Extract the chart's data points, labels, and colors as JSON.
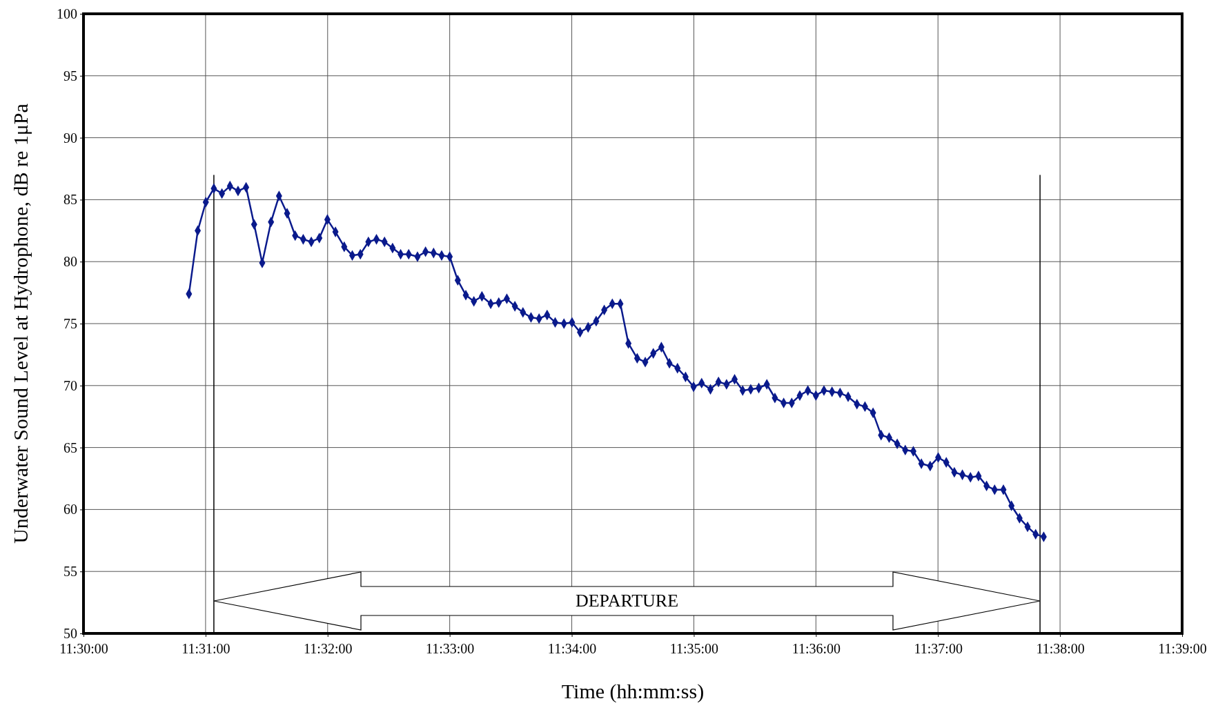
{
  "chart_data": {
    "type": "line",
    "xlabel": "Time (hh:mm:ss)",
    "ylabel": "Underwater Sound Level at Hydrophone, dB re 1μPa",
    "x": [
      11.5144,
      11.5156,
      11.5167,
      11.5178,
      11.5189,
      11.52,
      11.5211,
      11.5222,
      11.5233,
      11.5244,
      11.5256,
      11.5267,
      11.5278,
      11.5289,
      11.53,
      11.5311,
      11.5322,
      11.5333,
      11.5344,
      11.5356,
      11.5367,
      11.5378,
      11.5389,
      11.54,
      11.5411,
      11.5422,
      11.5433,
      11.5444,
      11.5456,
      11.5467,
      11.5478,
      11.5489,
      11.55,
      11.5511,
      11.5522,
      11.5533,
      11.5544,
      11.5556,
      11.5567,
      11.5578,
      11.5589,
      11.56,
      11.5611,
      11.5622,
      11.5633,
      11.5644,
      11.5656,
      11.5667,
      11.5678,
      11.5689,
      11.57,
      11.5711,
      11.5722,
      11.5733,
      11.5744,
      11.5756,
      11.5767,
      11.5778,
      11.5789,
      11.58,
      11.5811,
      11.5822,
      11.5833,
      11.5844,
      11.5856,
      11.5867,
      11.5878,
      11.5889,
      11.59,
      11.5911,
      11.5922,
      11.5933,
      11.5944,
      11.5956,
      11.5967,
      11.5978,
      11.5989,
      11.6,
      11.6011,
      11.6022,
      11.6033,
      11.6044,
      11.6056,
      11.6067,
      11.6078,
      11.6089,
      11.61,
      11.6111,
      11.6122,
      11.6133,
      11.6144,
      11.6156,
      11.6167,
      11.6178,
      11.6189,
      11.62,
      11.6211,
      11.6222,
      11.6233,
      11.6244,
      11.6256,
      11.6267,
      11.6278,
      11.6289,
      11.63,
      11.6311
    ],
    "series": [
      {
        "color": "#0a1a8c",
        "values": [
          77.4,
          82.5,
          84.8,
          85.9,
          85.5,
          86.1,
          85.7,
          86.0,
          83.0,
          79.9,
          83.2,
          85.3,
          83.9,
          82.1,
          81.8,
          81.6,
          81.9,
          83.4,
          82.4,
          81.2,
          80.5,
          80.6,
          81.6,
          81.8,
          81.6,
          81.1,
          80.6,
          80.6,
          80.4,
          80.8,
          80.7,
          80.5,
          80.4,
          78.5,
          77.3,
          76.8,
          77.2,
          76.6,
          76.7,
          77.0,
          76.4,
          75.9,
          75.5,
          75.4,
          75.7,
          75.1,
          75.0,
          75.1,
          74.3,
          74.7,
          75.2,
          76.1,
          76.6,
          76.6,
          73.4,
          72.2,
          71.9,
          72.6,
          73.1,
          71.8,
          71.4,
          70.7,
          69.9,
          70.2,
          69.7,
          70.3,
          70.1,
          70.5,
          69.6,
          69.7,
          69.8,
          70.1,
          69.0,
          68.6,
          68.6,
          69.2,
          69.6,
          69.2,
          69.6,
          69.5,
          69.4,
          69.1,
          68.5,
          68.3,
          67.8,
          66.0,
          65.8,
          65.3,
          64.8,
          64.7,
          63.7,
          63.5,
          64.2,
          63.8,
          63.0,
          62.8,
          62.6,
          62.7,
          61.9,
          61.6,
          61.6,
          60.3,
          59.3,
          58.6,
          58.0,
          57.8
        ]
      }
    ],
    "xlim": [
      11.5,
      11.65
    ],
    "xticks": [
      {
        "value": 11.5,
        "label": "11:30:00"
      },
      {
        "value": 11.516667,
        "label": "11:31:00"
      },
      {
        "value": 11.533333,
        "label": "11:32:00"
      },
      {
        "value": 11.55,
        "label": "11:33:00"
      },
      {
        "value": 11.566667,
        "label": "11:34:00"
      },
      {
        "value": 11.583333,
        "label": "11:35:00"
      },
      {
        "value": 11.6,
        "label": "11:36:00"
      },
      {
        "value": 11.616667,
        "label": "11:37:00"
      },
      {
        "value": 11.633333,
        "label": "11:38:00"
      },
      {
        "value": 11.65,
        "label": "11:39:00"
      }
    ],
    "ylim": [
      50,
      100
    ],
    "yticks": [
      50,
      55,
      60,
      65,
      70,
      75,
      80,
      85,
      90,
      95,
      100
    ],
    "ref_lines": [
      {
        "axis": "x",
        "value": 11.5178,
        "color": "#000000"
      },
      {
        "axis": "x",
        "value": 11.6306,
        "color": "#000000"
      }
    ],
    "annotations": [
      "DEPARTURE"
    ],
    "grid": true,
    "marker": "diamond",
    "line_style": "solid"
  }
}
